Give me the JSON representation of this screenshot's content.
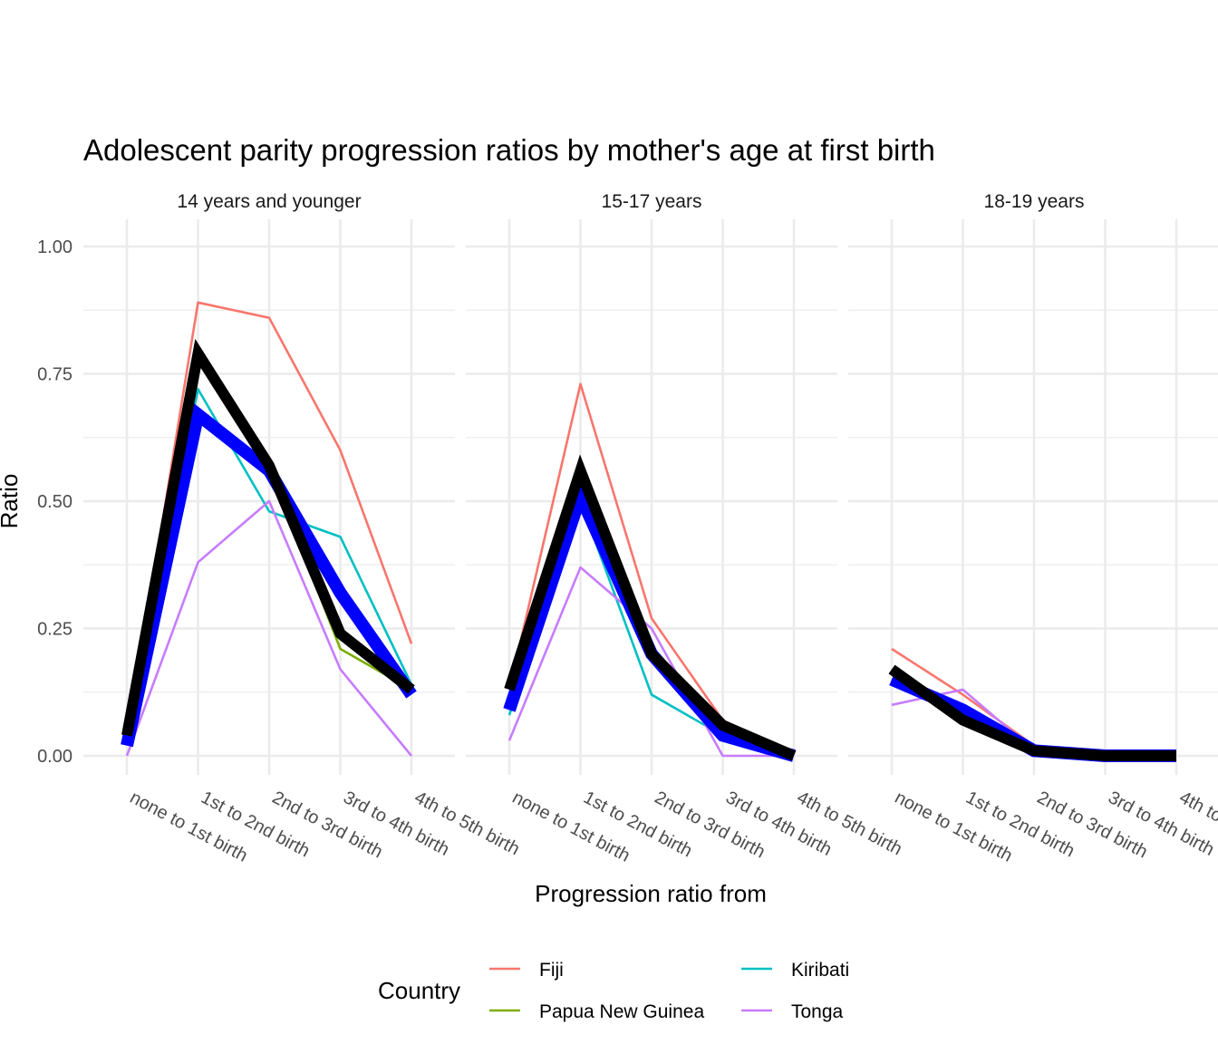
{
  "chart_data": {
    "type": "line",
    "title": "Adolescent parity progression ratios by mother's age at first birth",
    "xlabel": "Progression ratio from",
    "ylabel": "Ratio",
    "ylim": [
      0,
      1
    ],
    "yticks": [
      "0.00",
      "0.25",
      "0.50",
      "0.75",
      "1.00"
    ],
    "categories": [
      "none to 1st birth",
      "1st to 2nd birth",
      "2nd to 3rd birth",
      "3rd to 4th birth",
      "4th to 5th birth"
    ],
    "legend": {
      "title": "Country",
      "position": "bottom",
      "entries": [
        {
          "name": "Fiji",
          "color": "#F8766D"
        },
        {
          "name": "Kiribati",
          "color": "#00BFC4"
        },
        {
          "name": "Papua New Guinea",
          "color": "#7CAE00"
        },
        {
          "name": "Tonga",
          "color": "#C77CFF"
        }
      ]
    },
    "panels": [
      {
        "label": "14 years and younger",
        "series": [
          {
            "name": "Fiji",
            "color": "#F8766D",
            "values": [
              0.03,
              0.89,
              0.86,
              0.6,
              0.22
            ]
          },
          {
            "name": "Kiribati",
            "color": "#00BFC4",
            "values": [
              0.04,
              0.72,
              0.48,
              0.43,
              0.14
            ]
          },
          {
            "name": "Papua New Guinea",
            "color": "#7CAE00",
            "values": [
              0.04,
              0.78,
              0.57,
              0.21,
              0.13
            ]
          },
          {
            "name": "Tonga",
            "color": "#C77CFF",
            "values": [
              0.0,
              0.38,
              0.5,
              0.17,
              0.0
            ]
          }
        ],
        "mean_blue": [
          0.02,
          0.67,
          0.56,
          0.32,
          0.12
        ],
        "mean_black": [
          0.04,
          0.79,
          0.57,
          0.24,
          0.13
        ]
      },
      {
        "label": "15-17 years",
        "series": [
          {
            "name": "Fiji",
            "color": "#F8766D",
            "values": [
              0.13,
              0.73,
              0.27,
              0.07,
              0.0
            ]
          },
          {
            "name": "Kiribati",
            "color": "#00BFC4",
            "values": [
              0.08,
              0.5,
              0.12,
              0.04,
              0.0
            ]
          },
          {
            "name": "Papua New Guinea",
            "color": "#7CAE00",
            "values": [
              0.13,
              0.56,
              0.2,
              0.06,
              0.0
            ]
          },
          {
            "name": "Tonga",
            "color": "#C77CFF",
            "values": [
              0.03,
              0.37,
              0.25,
              0.0,
              0.0
            ]
          }
        ],
        "mean_blue": [
          0.09,
          0.51,
          0.2,
          0.04,
          0.0
        ],
        "mean_black": [
          0.13,
          0.56,
          0.2,
          0.06,
          0.0
        ]
      },
      {
        "label": "18-19 years",
        "series": [
          {
            "name": "Fiji",
            "color": "#F8766D",
            "values": [
              0.21,
              0.12,
              0.02,
              0.0,
              0.0
            ]
          },
          {
            "name": "Kiribati",
            "color": "#00BFC4",
            "values": [
              0.15,
              0.08,
              0.0,
              0.0,
              0.0
            ]
          },
          {
            "name": "Papua New Guinea",
            "color": "#7CAE00",
            "values": [
              0.17,
              0.07,
              0.01,
              0.0,
              0.0
            ]
          },
          {
            "name": "Tonga",
            "color": "#C77CFF",
            "values": [
              0.1,
              0.13,
              0.01,
              0.0,
              0.0
            ]
          }
        ],
        "mean_blue": [
          0.15,
          0.09,
          0.01,
          0.0,
          0.0
        ],
        "mean_black": [
          0.17,
          0.07,
          0.01,
          0.0,
          0.0
        ]
      }
    ]
  }
}
